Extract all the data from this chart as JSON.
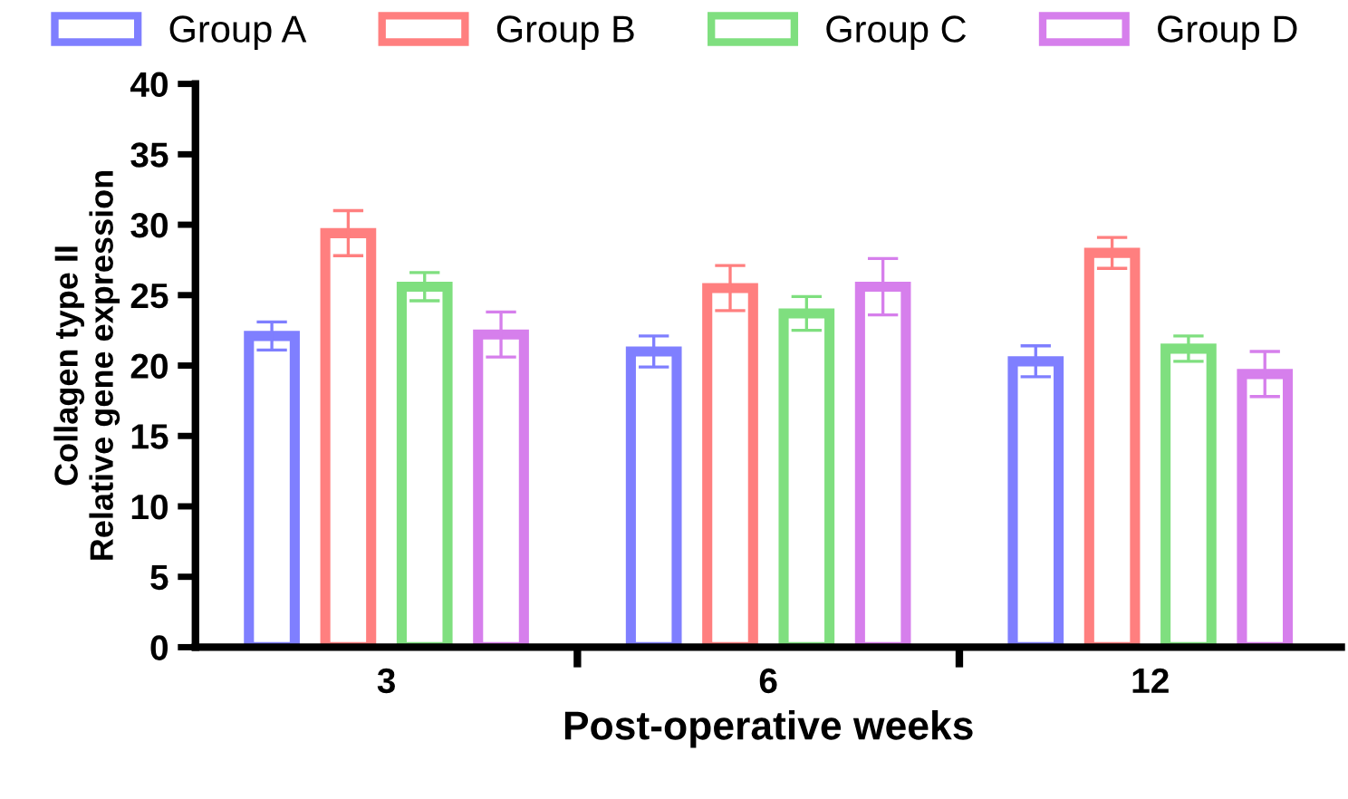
{
  "chart_data": {
    "type": "bar",
    "xlabel": "Post-operative weeks",
    "ylabel": "Collagen type II\nRelative gene expression",
    "categories": [
      "3",
      "6",
      "12"
    ],
    "series": [
      {
        "name": "Group A",
        "color": "#7f7fff",
        "values": [
          22.1,
          21.0,
          20.3
        ],
        "errors": [
          1.0,
          1.1,
          1.1
        ]
      },
      {
        "name": "Group B",
        "color": "#ff7f7f",
        "values": [
          29.4,
          25.5,
          28.0
        ],
        "errors": [
          1.6,
          1.6,
          1.1
        ]
      },
      {
        "name": "Group C",
        "color": "#7fdf7f",
        "values": [
          25.6,
          23.7,
          21.2
        ],
        "errors": [
          1.0,
          1.2,
          0.9
        ]
      },
      {
        "name": "Group D",
        "color": "#d67fec",
        "values": [
          22.2,
          25.6,
          19.4
        ],
        "errors": [
          1.6,
          2.0,
          1.6
        ]
      }
    ],
    "ylim": [
      0,
      40
    ],
    "yticks": [
      0,
      5,
      10,
      15,
      20,
      25,
      30,
      35,
      40
    ],
    "grid": false,
    "legend": "top"
  }
}
